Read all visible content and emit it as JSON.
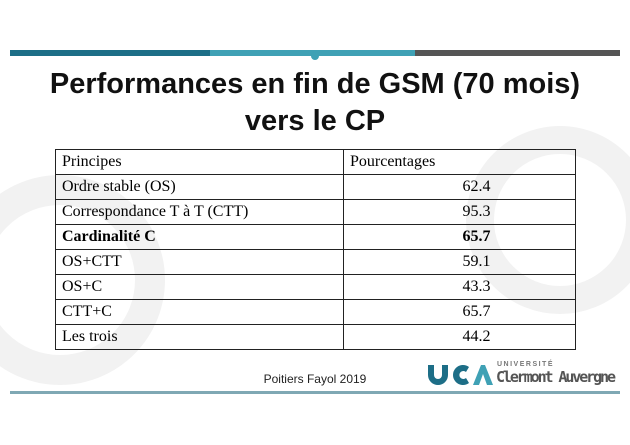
{
  "header": {
    "title_line1": "Performances en fin de GSM (70 mois)",
    "title_line2": "vers le CP"
  },
  "table": {
    "columns": [
      "Principes",
      "Pourcentages"
    ],
    "rows": [
      [
        "Ordre stable (OS)",
        "62.4"
      ],
      [
        "Correspondance T à T (CTT)",
        "95.3"
      ],
      [
        "Cardinalité C",
        "65.7"
      ],
      [
        "OS+CTT",
        "59.1"
      ],
      [
        "OS+C",
        "43.3"
      ],
      [
        "CTT+C",
        "65.7"
      ],
      [
        "Les trois",
        "44.2"
      ]
    ]
  },
  "footer": {
    "source": "Poitiers Fayol 2019",
    "logo_small": "UNIVERSITÉ",
    "logo_name": "Clermont Auvergne"
  }
}
